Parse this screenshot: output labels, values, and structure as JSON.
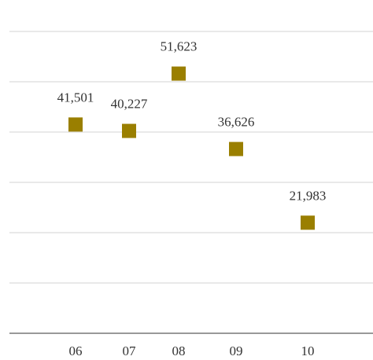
{
  "chart_data": {
    "type": "scatter",
    "title": "",
    "xlabel": "",
    "ylabel": "",
    "categories": [
      "06",
      "07",
      "08",
      "09",
      "10"
    ],
    "values": [
      41501,
      40227,
      51623,
      36626,
      21983
    ],
    "value_labels": [
      "41,501",
      "40,227",
      "51,623",
      "36,626",
      "21,983"
    ],
    "highlight_index": 4,
    "ylim": [
      0,
      60000
    ],
    "grid": true,
    "legend": "none",
    "colors": {
      "marker": "#9a7f00",
      "highlight_text": "#9a8000",
      "text": "#333333",
      "grid": "#d3d3d3",
      "axis": "#333333"
    }
  }
}
